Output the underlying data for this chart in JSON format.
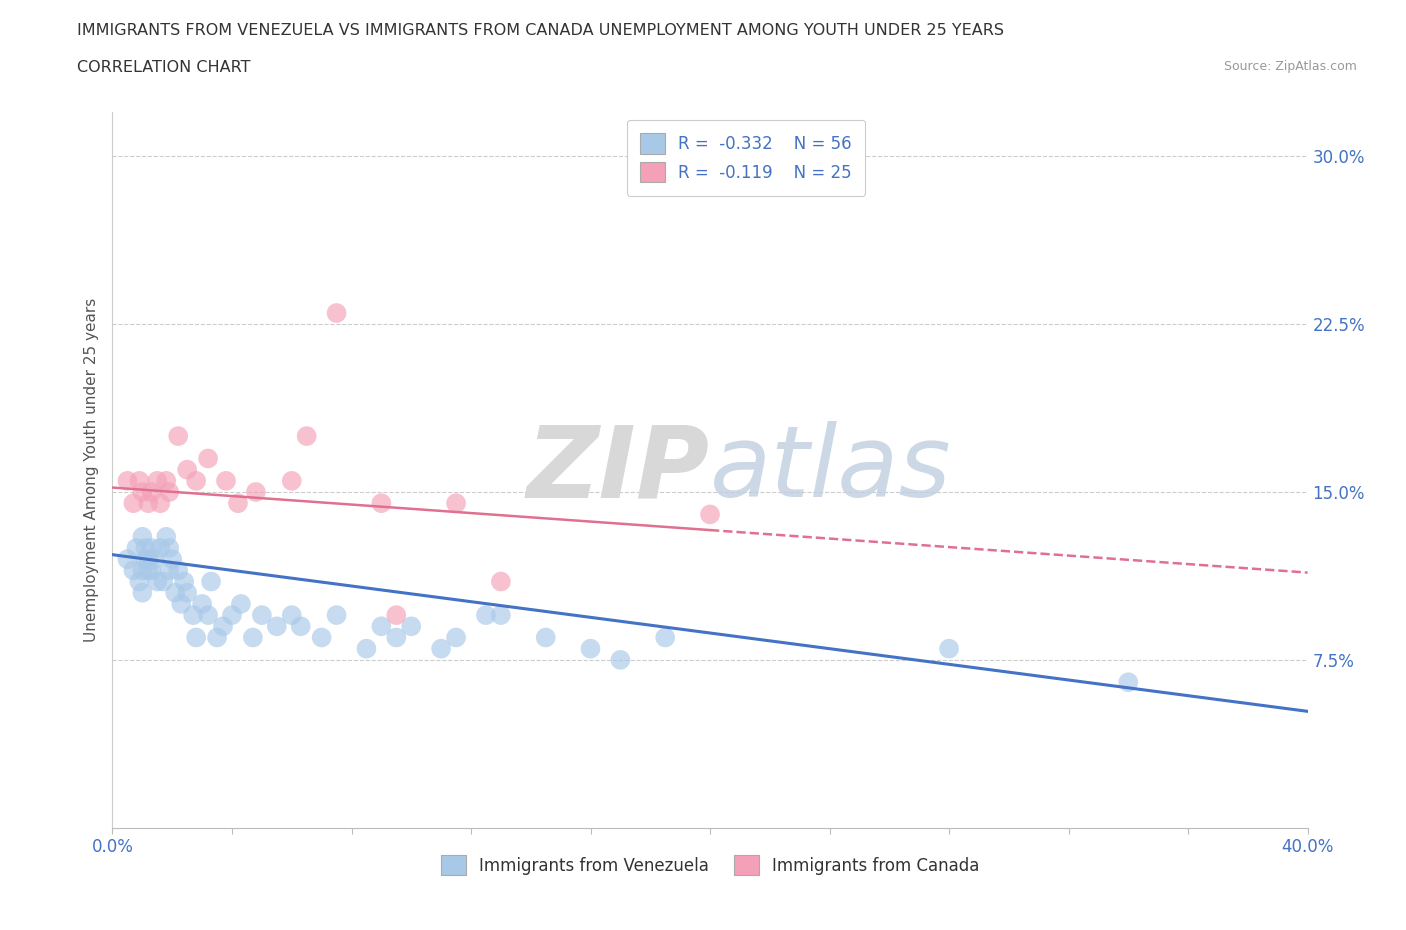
{
  "title_line1": "IMMIGRANTS FROM VENEZUELA VS IMMIGRANTS FROM CANADA UNEMPLOYMENT AMONG YOUTH UNDER 25 YEARS",
  "title_line2": "CORRELATION CHART",
  "source_text": "Source: ZipAtlas.com",
  "ylabel": "Unemployment Among Youth under 25 years",
  "xlim": [
    0.0,
    0.4
  ],
  "ylim": [
    0.0,
    0.32
  ],
  "ytick_values": [
    0.0,
    0.075,
    0.15,
    0.225,
    0.3
  ],
  "xtick_values": [
    0.0,
    0.04,
    0.08,
    0.12,
    0.16,
    0.2,
    0.24,
    0.28,
    0.32,
    0.36,
    0.4
  ],
  "venezuela_color": "#a8c8e8",
  "canada_color": "#f4a0b8",
  "venezuela_line_color": "#4472c4",
  "canada_line_color": "#e07090",
  "legend_r_venezuela": "-0.332",
  "legend_n_venezuela": "56",
  "legend_r_canada": "-0.119",
  "legend_n_canada": "25",
  "watermark_zip": "ZIP",
  "watermark_atlas": "atlas",
  "venezuela_x": [
    0.005,
    0.007,
    0.008,
    0.009,
    0.01,
    0.01,
    0.01,
    0.011,
    0.011,
    0.012,
    0.012,
    0.013,
    0.013,
    0.014,
    0.015,
    0.016,
    0.017,
    0.018,
    0.019,
    0.019,
    0.02,
    0.021,
    0.022,
    0.023,
    0.024,
    0.025,
    0.027,
    0.028,
    0.03,
    0.032,
    0.033,
    0.035,
    0.037,
    0.04,
    0.043,
    0.047,
    0.05,
    0.055,
    0.06,
    0.063,
    0.07,
    0.075,
    0.085,
    0.09,
    0.095,
    0.1,
    0.11,
    0.115,
    0.125,
    0.13,
    0.145,
    0.16,
    0.17,
    0.185,
    0.28,
    0.34
  ],
  "venezuela_y": [
    0.12,
    0.115,
    0.125,
    0.11,
    0.13,
    0.115,
    0.105,
    0.125,
    0.12,
    0.115,
    0.12,
    0.125,
    0.115,
    0.12,
    0.11,
    0.125,
    0.11,
    0.13,
    0.125,
    0.115,
    0.12,
    0.105,
    0.115,
    0.1,
    0.11,
    0.105,
    0.095,
    0.085,
    0.1,
    0.095,
    0.11,
    0.085,
    0.09,
    0.095,
    0.1,
    0.085,
    0.095,
    0.09,
    0.095,
    0.09,
    0.085,
    0.095,
    0.08,
    0.09,
    0.085,
    0.09,
    0.08,
    0.085,
    0.095,
    0.095,
    0.085,
    0.08,
    0.075,
    0.085,
    0.08,
    0.065
  ],
  "canada_x": [
    0.005,
    0.007,
    0.009,
    0.01,
    0.012,
    0.013,
    0.015,
    0.016,
    0.018,
    0.019,
    0.022,
    0.025,
    0.028,
    0.032,
    0.038,
    0.042,
    0.048,
    0.06,
    0.065,
    0.075,
    0.09,
    0.095,
    0.115,
    0.13,
    0.2
  ],
  "canada_y": [
    0.155,
    0.145,
    0.155,
    0.15,
    0.145,
    0.15,
    0.155,
    0.145,
    0.155,
    0.15,
    0.175,
    0.16,
    0.155,
    0.165,
    0.155,
    0.145,
    0.15,
    0.155,
    0.175,
    0.23,
    0.145,
    0.095,
    0.145,
    0.11,
    0.14
  ]
}
